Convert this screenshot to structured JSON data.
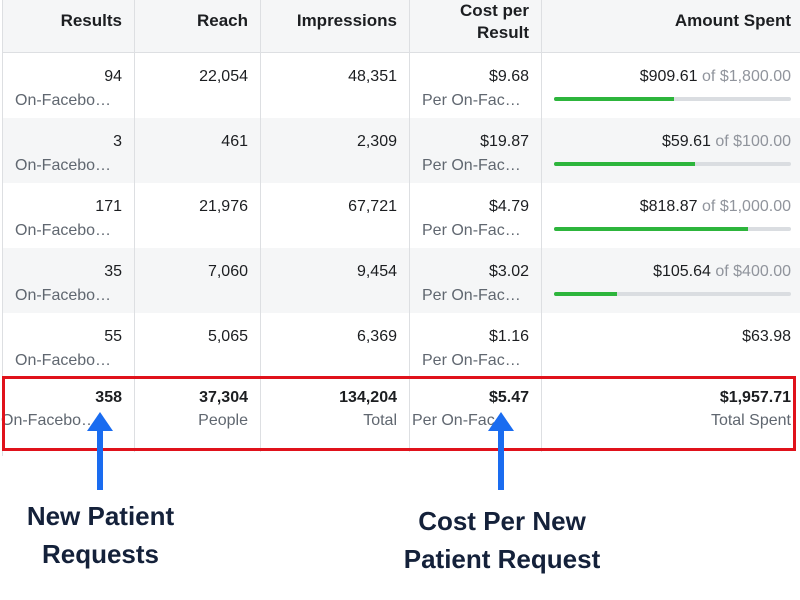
{
  "header": {
    "results": "Results",
    "reach": "Reach",
    "impressions": "Impressions",
    "cost_per_result_line1": "Cost per",
    "cost_per_result_line2": "Result",
    "amount_spent": "Amount Spent"
  },
  "rows": [
    {
      "results": "94",
      "results_sub": "On-Facebo…",
      "reach": "22,054",
      "impressions": "48,351",
      "cost": "$9.68",
      "cost_sub": "Per On-Fac…",
      "spent": "$909.61",
      "of": "of",
      "budget": "$1,800.00",
      "progress_pct": 50.5
    },
    {
      "results": "3",
      "results_sub": "On-Facebo…",
      "reach": "461",
      "impressions": "2,309",
      "cost": "$19.87",
      "cost_sub": "Per On-Fac…",
      "spent": "$59.61",
      "of": "of",
      "budget": "$100.00",
      "progress_pct": 59.6
    },
    {
      "results": "171",
      "results_sub": "On-Facebo…",
      "reach": "21,976",
      "impressions": "67,721",
      "cost": "$4.79",
      "cost_sub": "Per On-Fac…",
      "spent": "$818.87",
      "of": "of",
      "budget": "$1,000.00",
      "progress_pct": 81.9
    },
    {
      "results": "35",
      "results_sub": "On-Facebo…",
      "reach": "7,060",
      "impressions": "9,454",
      "cost": "$3.02",
      "cost_sub": "Per On-Fac…",
      "spent": "$105.64",
      "of": "of",
      "budget": "$400.00",
      "progress_pct": 26.4
    },
    {
      "results": "55",
      "results_sub": "On-Facebo…",
      "reach": "5,065",
      "impressions": "6,369",
      "cost": "$1.16",
      "cost_sub": "Per On-Fac…",
      "spent": "$63.98"
    }
  ],
  "totals": {
    "results": "358",
    "results_sub": "On-Facebo…",
    "reach": "37,304",
    "reach_sub": "People",
    "impressions": "134,204",
    "impressions_sub": "Total",
    "cost": "$5.47",
    "cost_sub": "Per On-Fac…",
    "spent": "$1,957.71",
    "spent_sub": "Total Spent"
  },
  "annotations": {
    "left_line1": "New Patient",
    "left_line2": "Requests",
    "right_line1": "Cost Per New",
    "right_line2": "Patient Request"
  },
  "colors": {
    "highlight_box": "#e0121b",
    "arrow": "#1a6cf0",
    "progress_fill": "#2db53c",
    "annotation_text": "#14213a"
  },
  "icons": [
    "arrow-up-icon"
  ]
}
